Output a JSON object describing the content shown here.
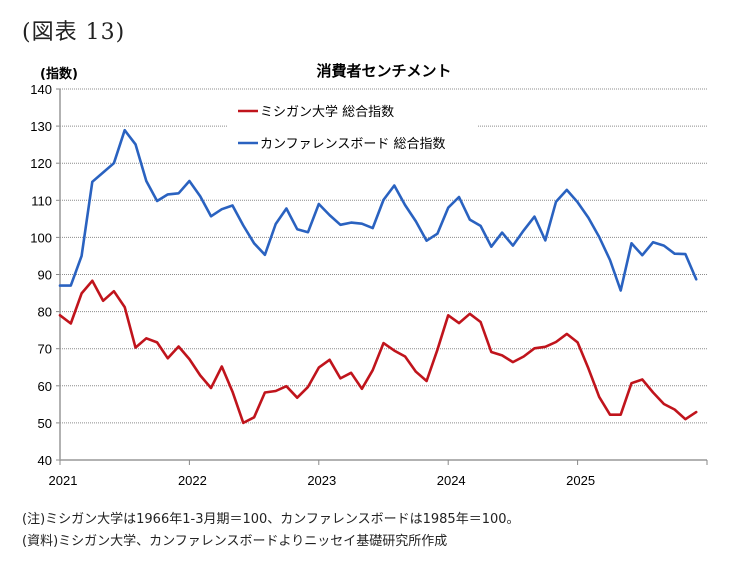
{
  "figure_label": "(図表 13)",
  "notes": {
    "note": "(注)ミシガン大学は1966年1-3月期＝100、カンファレンスボードは1985年＝100。",
    "source": "(資料)ミシガン大学、カンファレンスボードよりニッセイ基礎研究所作成"
  },
  "chart_data": {
    "type": "line",
    "title": "消費者センチメント",
    "ylabel": "(指数)",
    "xlabel": "",
    "ylim": [
      40,
      140
    ],
    "yticks": [
      40,
      50,
      60,
      70,
      80,
      90,
      100,
      110,
      120,
      130,
      140
    ],
    "xticks": [
      "2021",
      "2022",
      "2023",
      "2024",
      "2025"
    ],
    "grid": true,
    "legend_position": "top-center",
    "x_start": "2021-01",
    "frequency": "monthly",
    "series": [
      {
        "name": "ミシガン大学 総合指数",
        "color": "#c0141c",
        "values": [
          79.0,
          76.8,
          84.9,
          88.3,
          82.9,
          85.5,
          81.2,
          70.3,
          72.8,
          71.7,
          67.4,
          70.6,
          67.2,
          62.8,
          59.4,
          65.2,
          58.4,
          50.0,
          51.5,
          58.2,
          58.6,
          59.9,
          56.8,
          59.7,
          64.9,
          67.0,
          62.0,
          63.5,
          59.2,
          64.2,
          71.5,
          69.5,
          67.9,
          63.8,
          61.3,
          69.7,
          79.0,
          76.9,
          79.4,
          77.2,
          69.1,
          68.2,
          66.4,
          67.9,
          70.1,
          70.5,
          71.8,
          74.0,
          71.7,
          64.7,
          57.0,
          52.2,
          52.2,
          60.7,
          61.7,
          58.2,
          55.1,
          53.6,
          51.0,
          52.9
        ]
      },
      {
        "name": "カンファレンスボード 総合指数",
        "color": "#2a62c0",
        "values": [
          87.0,
          87.0,
          95.0,
          115.0,
          117.5,
          120.0,
          128.9,
          125.1,
          115.2,
          109.8,
          111.6,
          111.9,
          115.2,
          111.1,
          105.7,
          107.6,
          108.6,
          103.2,
          98.4,
          95.3,
          103.6,
          107.8,
          102.2,
          101.4,
          109.0,
          106.0,
          103.4,
          104.0,
          103.7,
          102.5,
          110.1,
          114.0,
          108.7,
          104.3,
          99.1,
          101.0,
          108.0,
          110.9,
          104.8,
          103.1,
          97.5,
          101.3,
          97.8,
          101.9,
          105.6,
          99.2,
          109.6,
          112.8,
          109.5,
          105.3,
          100.1,
          93.9,
          85.7,
          98.4,
          95.2,
          98.7,
          97.8,
          95.6,
          95.5,
          88.7
        ]
      }
    ]
  }
}
